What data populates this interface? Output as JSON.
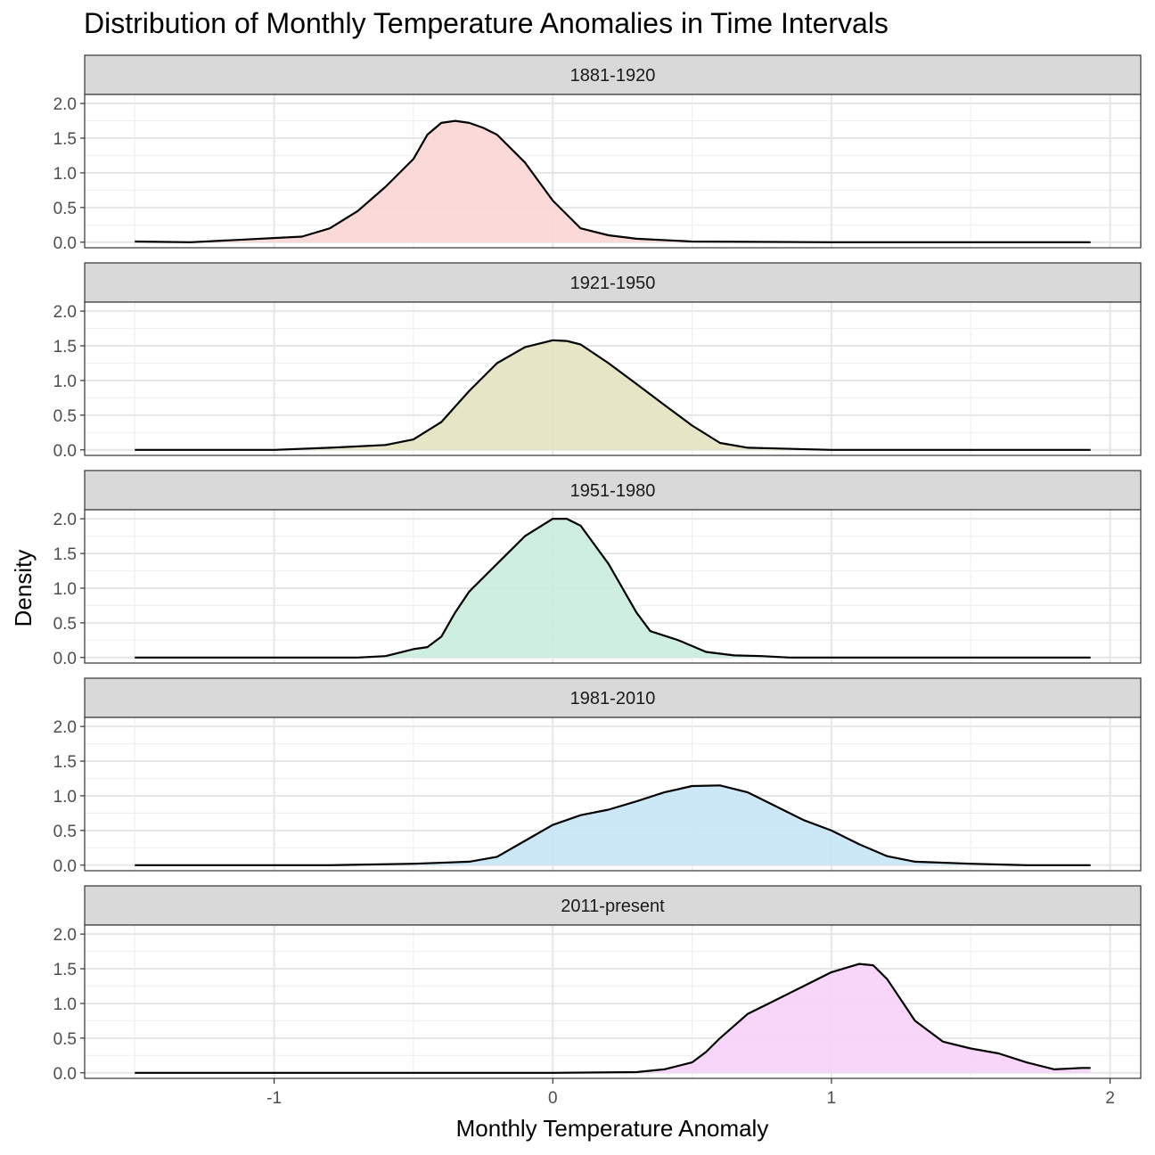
{
  "chart_data": {
    "type": "area",
    "title": "Distribution of Monthly Temperature Anomalies in Time Intervals",
    "xlabel": "Monthly Temperature Anomaly",
    "ylabel": "Density",
    "xlim": [
      -1.68,
      2.11
    ],
    "ylim": [
      -0.08,
      2.13
    ],
    "xticks": [
      -1,
      0,
      1,
      2
    ],
    "xtick_labels": [
      "-1",
      "0",
      "1",
      "2"
    ],
    "yticks": [
      0,
      0.5,
      1,
      1.5,
      2
    ],
    "ytick_labels": [
      "0.0",
      "0.5",
      "1.0",
      "1.5",
      "2.0"
    ],
    "grid": true,
    "facets": [
      {
        "label": "1881-1920",
        "fill": "#fcd5d5",
        "points": [
          [
            -1.5,
            0.01
          ],
          [
            -1.3,
            0.0
          ],
          [
            -1.1,
            0.04
          ],
          [
            -0.9,
            0.08
          ],
          [
            -0.8,
            0.2
          ],
          [
            -0.7,
            0.45
          ],
          [
            -0.6,
            0.8
          ],
          [
            -0.5,
            1.2
          ],
          [
            -0.45,
            1.55
          ],
          [
            -0.4,
            1.72
          ],
          [
            -0.35,
            1.75
          ],
          [
            -0.3,
            1.72
          ],
          [
            -0.25,
            1.65
          ],
          [
            -0.2,
            1.55
          ],
          [
            -0.1,
            1.15
          ],
          [
            0.0,
            0.6
          ],
          [
            0.1,
            0.2
          ],
          [
            0.2,
            0.1
          ],
          [
            0.3,
            0.05
          ],
          [
            0.5,
            0.01
          ],
          [
            1.0,
            0.0
          ],
          [
            1.93,
            0.0
          ]
        ]
      },
      {
        "label": "1921-1950",
        "fill": "#e3e2bf",
        "points": [
          [
            -1.5,
            0.0
          ],
          [
            -1.0,
            0.0
          ],
          [
            -0.8,
            0.03
          ],
          [
            -0.6,
            0.07
          ],
          [
            -0.5,
            0.15
          ],
          [
            -0.4,
            0.4
          ],
          [
            -0.3,
            0.85
          ],
          [
            -0.2,
            1.25
          ],
          [
            -0.1,
            1.48
          ],
          [
            0.0,
            1.58
          ],
          [
            0.05,
            1.57
          ],
          [
            0.1,
            1.52
          ],
          [
            0.2,
            1.25
          ],
          [
            0.3,
            0.95
          ],
          [
            0.4,
            0.65
          ],
          [
            0.5,
            0.35
          ],
          [
            0.6,
            0.1
          ],
          [
            0.7,
            0.03
          ],
          [
            0.8,
            0.02
          ],
          [
            1.0,
            0.0
          ],
          [
            1.93,
            0.0
          ]
        ]
      },
      {
        "label": "1951-1980",
        "fill": "#c9ecdc",
        "points": [
          [
            -1.5,
            0.0
          ],
          [
            -0.7,
            0.0
          ],
          [
            -0.6,
            0.02
          ],
          [
            -0.55,
            0.07
          ],
          [
            -0.5,
            0.12
          ],
          [
            -0.45,
            0.15
          ],
          [
            -0.4,
            0.3
          ],
          [
            -0.35,
            0.65
          ],
          [
            -0.3,
            0.95
          ],
          [
            -0.2,
            1.35
          ],
          [
            -0.1,
            1.75
          ],
          [
            0.0,
            2.0
          ],
          [
            0.05,
            2.0
          ],
          [
            0.1,
            1.9
          ],
          [
            0.2,
            1.35
          ],
          [
            0.3,
            0.65
          ],
          [
            0.35,
            0.38
          ],
          [
            0.45,
            0.25
          ],
          [
            0.55,
            0.08
          ],
          [
            0.65,
            0.03
          ],
          [
            0.75,
            0.02
          ],
          [
            0.85,
            0.0
          ],
          [
            1.93,
            0.0
          ]
        ]
      },
      {
        "label": "1981-2010",
        "fill": "#c6e5f6",
        "points": [
          [
            -1.5,
            0.0
          ],
          [
            -0.8,
            0.0
          ],
          [
            -0.5,
            0.02
          ],
          [
            -0.3,
            0.05
          ],
          [
            -0.2,
            0.12
          ],
          [
            -0.1,
            0.35
          ],
          [
            0.0,
            0.58
          ],
          [
            0.1,
            0.72
          ],
          [
            0.2,
            0.8
          ],
          [
            0.3,
            0.92
          ],
          [
            0.4,
            1.05
          ],
          [
            0.5,
            1.14
          ],
          [
            0.6,
            1.15
          ],
          [
            0.7,
            1.05
          ],
          [
            0.8,
            0.85
          ],
          [
            0.9,
            0.65
          ],
          [
            1.0,
            0.5
          ],
          [
            1.1,
            0.3
          ],
          [
            1.2,
            0.13
          ],
          [
            1.3,
            0.05
          ],
          [
            1.5,
            0.02
          ],
          [
            1.7,
            0.0
          ],
          [
            1.93,
            0.0
          ]
        ]
      },
      {
        "label": "2011-present",
        "fill": "#f6d1f9",
        "points": [
          [
            -1.5,
            0.0
          ],
          [
            0.0,
            0.0
          ],
          [
            0.3,
            0.01
          ],
          [
            0.4,
            0.05
          ],
          [
            0.5,
            0.15
          ],
          [
            0.55,
            0.3
          ],
          [
            0.6,
            0.5
          ],
          [
            0.7,
            0.85
          ],
          [
            0.8,
            1.05
          ],
          [
            0.9,
            1.25
          ],
          [
            1.0,
            1.45
          ],
          [
            1.1,
            1.57
          ],
          [
            1.15,
            1.55
          ],
          [
            1.2,
            1.35
          ],
          [
            1.3,
            0.75
          ],
          [
            1.4,
            0.45
          ],
          [
            1.5,
            0.35
          ],
          [
            1.6,
            0.28
          ],
          [
            1.7,
            0.15
          ],
          [
            1.8,
            0.05
          ],
          [
            1.9,
            0.07
          ],
          [
            1.93,
            0.07
          ]
        ]
      }
    ]
  }
}
